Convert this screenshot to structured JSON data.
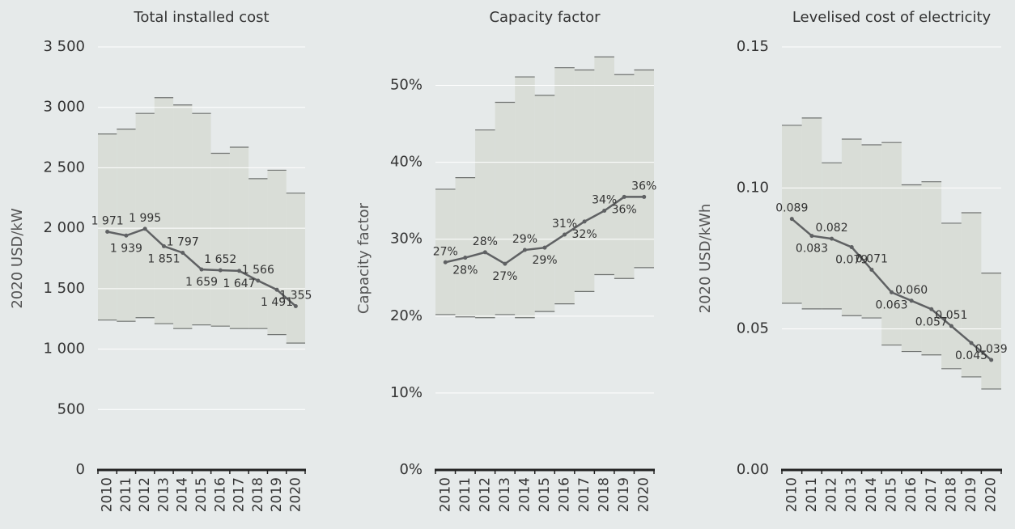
{
  "chart_data": [
    {
      "type": "line",
      "title": "Total installed cost",
      "y_label": "2020 USD/kW",
      "categories": [
        "2010",
        "2011",
        "2012",
        "2013",
        "2014",
        "2015",
        "2016",
        "2017",
        "2018",
        "2019",
        "2020"
      ],
      "range": {
        "color": "#d9ddd7",
        "upper": [
          2780,
          2820,
          2950,
          3080,
          3020,
          2950,
          2620,
          2670,
          2410,
          2480,
          2290
        ],
        "lower": [
          1240,
          1230,
          1260,
          1210,
          1170,
          1200,
          1190,
          1170,
          1170,
          1120,
          1050
        ]
      },
      "series": [
        {
          "color": "#5f6163",
          "values": [
            1971,
            1939,
            1995,
            1851,
            1797,
            1659,
            1652,
            1647,
            1566,
            1491,
            1355
          ],
          "value_labels": [
            "1 971",
            "1 939",
            "1 995",
            "1 851",
            "1 797",
            "1 659",
            "1 652",
            "1 647",
            "1 566",
            "1 491",
            "1 355"
          ]
        }
      ],
      "ylim": [
        0,
        3500
      ],
      "yticks": [
        0,
        500,
        {
          "value": 1000,
          "label": "1 000"
        },
        {
          "value": 1500,
          "label": "1 500"
        },
        {
          "value": 2000,
          "label": "2 000"
        },
        {
          "value": 2500,
          "label": "2 500"
        },
        {
          "value": 3000,
          "label": "3 000"
        },
        {
          "value": 3500,
          "label": "3 500"
        }
      ],
      "grid": true
    },
    {
      "type": "line",
      "title": "Capacity factor",
      "y_label": "Capacity factor",
      "categories": [
        "2010",
        "2011",
        "2012",
        "2013",
        "2014",
        "2015",
        "2016",
        "2017",
        "2018",
        "2019",
        "2020"
      ],
      "range": {
        "color": "#d9ddd7",
        "upper": [
          36.5,
          38.0,
          44.2,
          47.8,
          51.1,
          48.7,
          52.3,
          52.0,
          53.7,
          51.4,
          52.0
        ],
        "lower": [
          20.2,
          19.9,
          19.8,
          20.2,
          19.8,
          20.6,
          21.6,
          23.2,
          25.4,
          24.9,
          26.3
        ]
      },
      "series": [
        {
          "color": "#5f6163",
          "values": [
            27.0,
            27.6,
            28.3,
            26.8,
            28.6,
            28.9,
            30.6,
            32.3,
            33.7,
            35.5,
            35.5
          ],
          "value_labels": [
            "27%",
            "28%",
            "28%",
            "27%",
            "29%",
            "29%",
            "31%",
            "32%",
            "34%",
            "36%",
            "36%"
          ]
        }
      ],
      "ylim": [
        0,
        55
      ],
      "yticks": [
        {
          "value": 0,
          "label": "0%"
        },
        {
          "value": 10,
          "label": "10%"
        },
        {
          "value": 20,
          "label": "20%"
        },
        {
          "value": 30,
          "label": "30%"
        },
        {
          "value": 40,
          "label": "40%"
        },
        {
          "value": 50,
          "label": "50%"
        }
      ],
      "grid": true
    },
    {
      "type": "line",
      "title": "Levelised cost of electricity",
      "y_label": "2020 USD/kWh",
      "categories": [
        "2010",
        "2011",
        "2012",
        "2013",
        "2014",
        "2015",
        "2016",
        "2017",
        "2018",
        "2019",
        "2020"
      ],
      "range": {
        "color": "#d9ddd7",
        "upper": [
          0.1222,
          0.1248,
          0.1089,
          0.1173,
          0.1153,
          0.1161,
          0.1011,
          0.1022,
          0.0875,
          0.0912,
          0.0698
        ],
        "lower": [
          0.0591,
          0.0571,
          0.0571,
          0.0547,
          0.0539,
          0.0443,
          0.042,
          0.0408,
          0.0359,
          0.033,
          0.0287
        ]
      },
      "series": [
        {
          "color": "#5f6163",
          "values": [
            0.089,
            0.083,
            0.082,
            0.079,
            0.071,
            0.063,
            0.06,
            0.057,
            0.051,
            0.045,
            0.039
          ],
          "value_labels": [
            "0.089",
            "0.083",
            "0.082",
            "0.079",
            "0.071",
            "0.063",
            "0.060",
            "0.057",
            "0.051",
            "0.045",
            "0.039"
          ]
        }
      ],
      "ylim": [
        0,
        0.15
      ],
      "yticks": [
        {
          "value": 0,
          "label": "0.00"
        },
        0.05,
        {
          "value": 0.1,
          "label": "0.10"
        },
        0.15
      ],
      "grid": true
    }
  ]
}
